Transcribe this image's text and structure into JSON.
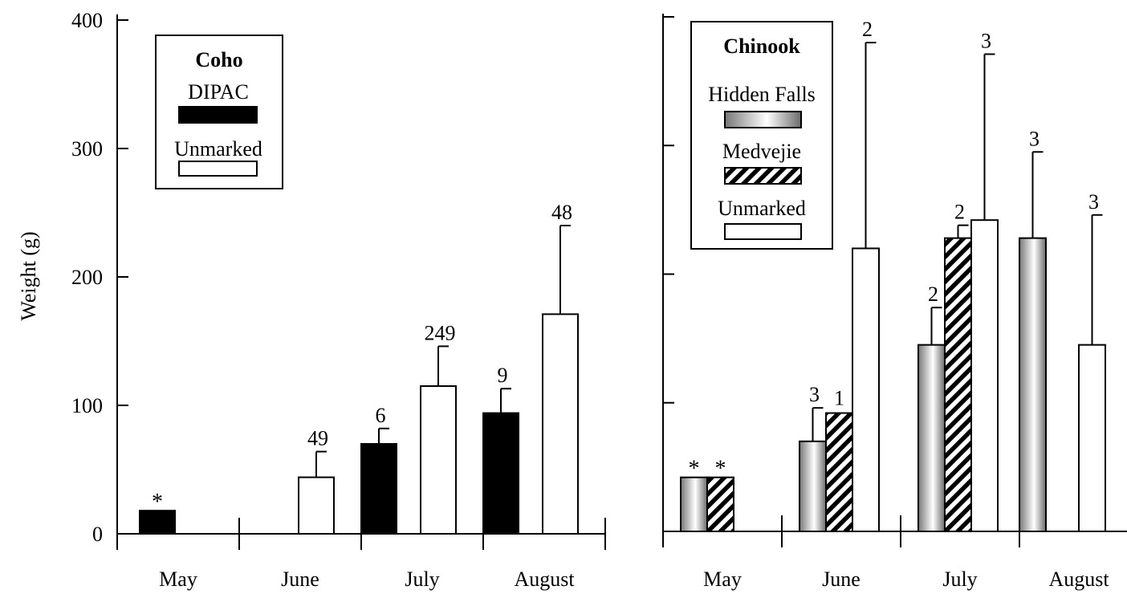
{
  "chart_data": [
    {
      "type": "bar",
      "ylabel": "Weight (g)",
      "ylim": [
        0,
        400
      ],
      "yticks": [
        0,
        100,
        200,
        300,
        400
      ],
      "categories": [
        "May",
        "June",
        "July",
        "August"
      ],
      "legend": {
        "title": "Coho",
        "placement": "top-left"
      },
      "series": [
        {
          "name": "DIPAC",
          "fill": "black",
          "values": [
            18,
            0,
            70,
            94
          ],
          "error_upper": [
            null,
            null,
            82,
            113
          ],
          "labels": [
            "*",
            "",
            "6",
            "9"
          ]
        },
        {
          "name": "Unmarked",
          "fill": "white",
          "values": [
            0,
            44,
            115,
            171
          ],
          "error_upper": [
            null,
            64,
            146,
            240
          ],
          "labels": [
            "",
            "49",
            "249",
            "48"
          ]
        }
      ]
    },
    {
      "type": "bar",
      "ylim": [
        0,
        400
      ],
      "categories": [
        "May",
        "June",
        "July",
        "August"
      ],
      "legend": {
        "title": "Chinook",
        "placement": "top-left"
      },
      "series": [
        {
          "name": "Hidden Falls",
          "fill": "gradient",
          "values": [
            42,
            70,
            145,
            228
          ],
          "error_upper": [
            null,
            96,
            174,
            295
          ],
          "labels": [
            "*",
            "3",
            "2",
            "3"
          ]
        },
        {
          "name": "Medvejie",
          "fill": "hatch",
          "values": [
            42,
            92,
            228,
            null
          ],
          "error_upper": [
            null,
            null,
            238,
            null
          ],
          "labels": [
            "*",
            "1",
            "2",
            ""
          ]
        },
        {
          "name": "Unmarked",
          "fill": "white",
          "values": [
            null,
            220,
            242,
            145
          ],
          "error_upper": [
            null,
            380,
            371,
            246
          ],
          "labels": [
            "",
            "2",
            "3",
            "3"
          ]
        }
      ]
    }
  ],
  "colors": {
    "ink": "#000000",
    "paper": "#ffffff",
    "gradient_dark": "#6e6e6e",
    "gradient_light": "#ffffff"
  }
}
